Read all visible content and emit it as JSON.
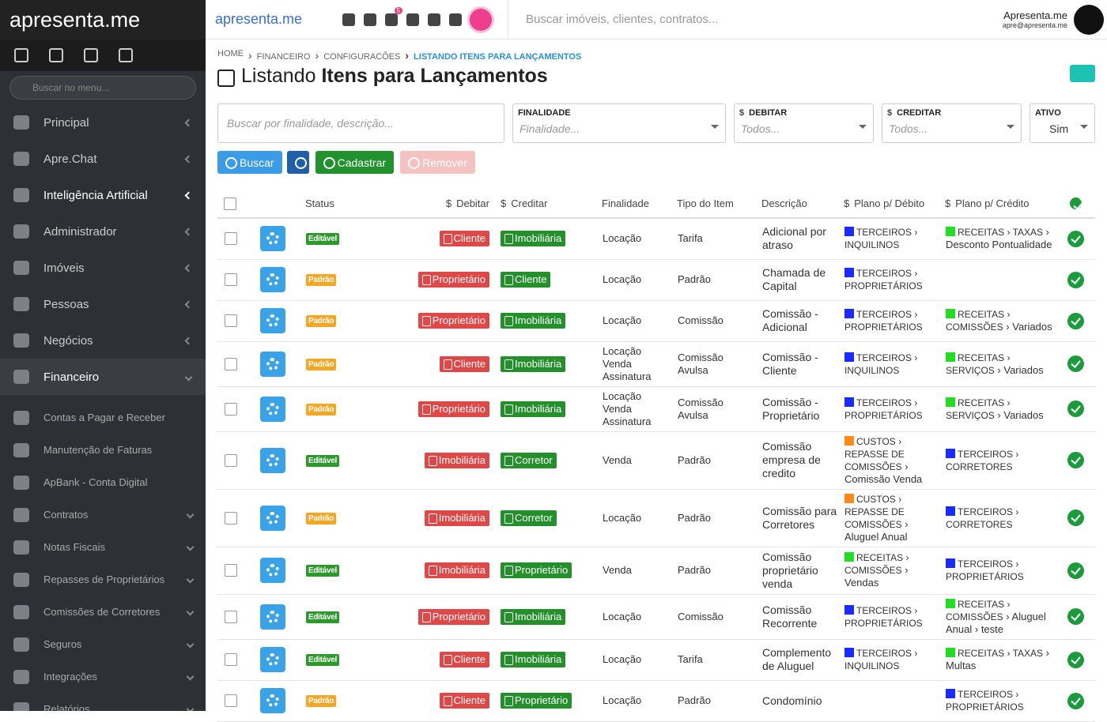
{
  "sidebar": {
    "logo": "apresenta.me",
    "search_placeholder": "Buscar no menu...",
    "menu": [
      "Principal",
      "Apre.Chat",
      "Inteligência Artificial",
      "Administrador",
      "Imóveis",
      "Pessoas",
      "Negócios",
      "Financeiro"
    ],
    "submenu": [
      "Contas a Pagar e Receber",
      "Manutenção de Faturas",
      "ApBank - Conta Digital",
      "Contratos",
      "Notas Fiscais",
      "Repasses de Proprietários",
      "Comissões de Corretores",
      "Seguros",
      "Integrações",
      "Relatórios"
    ]
  },
  "topbar": {
    "logo": "apresenta.me",
    "notification_count": 5,
    "search_placeholder": "Buscar imóveis, clientes, contratos...",
    "user_name": "Apresenta.me",
    "user_email": "apre@apresenta.me"
  },
  "breadcrumb": [
    "HOME",
    "FINANCEIRO",
    "CONFIGURACÕES",
    "LISTANDO ITENS PARA LANÇAMENTOS"
  ],
  "title": {
    "prefix": "Listando",
    "emphasis": "Itens para Lançamentos"
  },
  "filters": {
    "search_placeholder": "Buscar por finalidade, descrição...",
    "finalidade": {
      "label": "FINALIDADE",
      "placeholder": "Finalidade..."
    },
    "debitar": {
      "label": "DEBITAR",
      "placeholder": "Todos..."
    },
    "creditar": {
      "label": "CREDITAR",
      "placeholder": "Todos..."
    },
    "ativo": {
      "label": "ATIVO",
      "value": "Sim"
    }
  },
  "buttons": {
    "search": "Buscar",
    "create": "Cadastrar",
    "remove": "Remover"
  },
  "table": {
    "headers": {
      "status": "Status",
      "debitar": "Debitar",
      "creditar": "Creditar",
      "finalidade": "Finalidade",
      "tipo": "Tipo do Item",
      "descricao": "Descrição",
      "plano_debito": "Plano p/ Débito",
      "plano_credito": "Plano p/ Crédito"
    },
    "rows": [
      {
        "status": "Editável",
        "debitar": "Cliente",
        "creditar": "Imobiliária",
        "finalidade": [
          "Locação"
        ],
        "tipo": "Tarifa",
        "descricao": "Adicional por atraso",
        "plano_debito": {
          "color": "#1a2bff",
          "parts": [
            "TERCEIROS",
            "INQUILINOS"
          ]
        },
        "plano_credito": {
          "color": "#22dd22",
          "parts": [
            "RECEITAS",
            "TAXAS",
            "Desconto Pontualidade"
          ]
        }
      },
      {
        "status": "Padrão",
        "debitar": "Proprietário",
        "creditar": "Cliente",
        "finalidade": [
          "Locação"
        ],
        "tipo": "Padrão",
        "descricao": "Chamada de Capital",
        "plano_debito": {
          "color": "#1a2bff",
          "parts": [
            "TERCEIROS",
            "PROPRIETÁRIOS"
          ]
        },
        "plano_credito": null
      },
      {
        "status": "Padrão",
        "debitar": "Proprietário",
        "creditar": "Imobiliária",
        "finalidade": [
          "Locação"
        ],
        "tipo": "Comissão",
        "descricao": "Comissão - Adicional",
        "plano_debito": {
          "color": "#1a2bff",
          "parts": [
            "TERCEIROS",
            "PROPRIETÁRIOS"
          ]
        },
        "plano_credito": {
          "color": "#22dd22",
          "parts": [
            "RECEITAS",
            "COMISSÕES",
            "Variados"
          ]
        }
      },
      {
        "status": "Padrão",
        "debitar": "Cliente",
        "creditar": "Imobiliária",
        "finalidade": [
          "Locação",
          "Venda",
          "Assinatura"
        ],
        "tipo": "Comissão Avulsa",
        "descricao": "Comissão - Cliente",
        "plano_debito": {
          "color": "#1a2bff",
          "parts": [
            "TERCEIROS",
            "INQUILINOS"
          ]
        },
        "plano_credito": {
          "color": "#22dd22",
          "parts": [
            "RECEITAS",
            "SERVIÇOS",
            "Variados"
          ]
        }
      },
      {
        "status": "Padrão",
        "debitar": "Proprietário",
        "creditar": "Imobiliária",
        "finalidade": [
          "Locação",
          "Venda",
          "Assinatura"
        ],
        "tipo": "Comissão Avulsa",
        "descricao": "Comissão - Proprietário",
        "plano_debito": {
          "color": "#1a2bff",
          "parts": [
            "TERCEIROS",
            "PROPRIETÁRIOS"
          ]
        },
        "plano_credito": {
          "color": "#22dd22",
          "parts": [
            "RECEITAS",
            "SERVIÇOS",
            "Variados"
          ]
        }
      },
      {
        "status": "Editável",
        "debitar": "Imobiliária",
        "creditar": "Corretor",
        "finalidade": [
          "Venda"
        ],
        "tipo": "Padrão",
        "descricao": "Comissão empresa de credito",
        "plano_debito": {
          "color": "#ff8a1a",
          "parts": [
            "CUSTOS",
            "REPASSE DE COMISSÕES",
            "Comissão Venda"
          ]
        },
        "plano_credito": {
          "color": "#1a2bff",
          "parts": [
            "TERCEIROS",
            "CORRETORES"
          ]
        }
      },
      {
        "status": "Padrão",
        "debitar": "Imobiliária",
        "creditar": "Corretor",
        "finalidade": [
          "Locação"
        ],
        "tipo": "Padrão",
        "descricao": "Comissão para Corretores",
        "plano_debito": {
          "color": "#ff8a1a",
          "parts": [
            "CUSTOS",
            "REPASSE DE COMISSÕES",
            "Aluguel Anual"
          ]
        },
        "plano_credito": {
          "color": "#1a2bff",
          "parts": [
            "TERCEIROS",
            "CORRETORES"
          ]
        }
      },
      {
        "status": "Editável",
        "debitar": "Imobiliária",
        "creditar": "Proprietário",
        "finalidade": [
          "Venda"
        ],
        "tipo": "Padrão",
        "descricao": "Comissão proprietário venda",
        "plano_debito": {
          "color": "#22dd22",
          "parts": [
            "RECEITAS",
            "COMISSÕES",
            "Vendas"
          ]
        },
        "plano_credito": {
          "color": "#1a2bff",
          "parts": [
            "TERCEIROS",
            "PROPRIETÁRIOS"
          ]
        }
      },
      {
        "status": "Editável",
        "debitar": "Proprietário",
        "creditar": "Imobiliária",
        "finalidade": [
          "Locação"
        ],
        "tipo": "Comissão",
        "descricao": "Comissão Recorrente",
        "plano_debito": {
          "color": "#1a2bff",
          "parts": [
            "TERCEIROS",
            "PROPRIETÁRIOS"
          ]
        },
        "plano_credito": {
          "color": "#22dd22",
          "parts": [
            "RECEITAS",
            "COMISSÕES",
            "Aluguel Anual",
            "teste"
          ]
        }
      },
      {
        "status": "Editável",
        "debitar": "Cliente",
        "creditar": "Imobiliária",
        "finalidade": [
          "Locação"
        ],
        "tipo": "Tarifa",
        "descricao": "Complemento de Aluguel",
        "plano_debito": {
          "color": "#1a2bff",
          "parts": [
            "TERCEIROS",
            "INQUILINOS"
          ]
        },
        "plano_credito": {
          "color": "#22dd22",
          "parts": [
            "RECEITAS",
            "TAXAS",
            "Multas"
          ]
        }
      },
      {
        "status": "Padrão",
        "debitar": "Cliente",
        "creditar": "Proprietário",
        "finalidade": [
          "Locação"
        ],
        "tipo": "Padrão",
        "descricao": "Condomínio",
        "plano_debito": null,
        "plano_credito": {
          "color": "#1a2bff",
          "parts": [
            "TERCEIROS",
            "PROPRIETÁRIOS"
          ]
        }
      }
    ]
  }
}
